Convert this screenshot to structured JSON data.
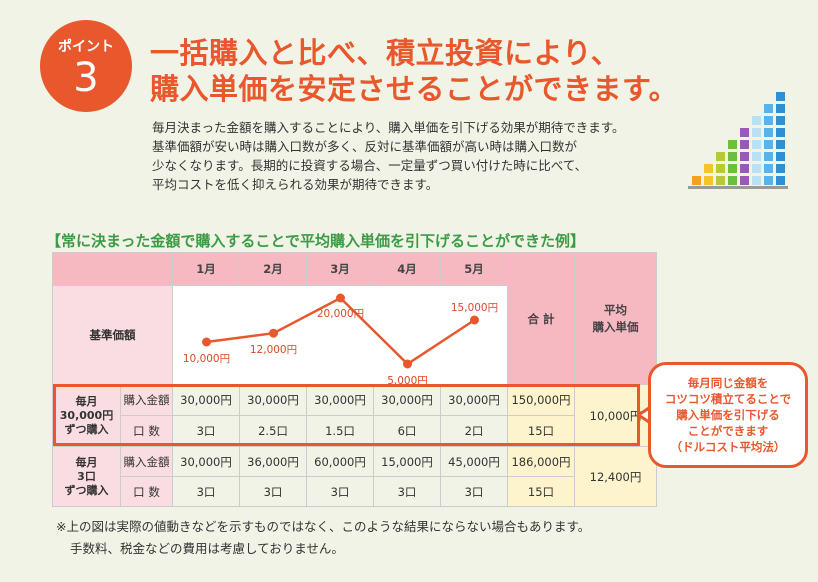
{
  "badge": {
    "label": "ポイント",
    "number": "3"
  },
  "title": {
    "line1": "一括購入と比べ、積立投資により、",
    "line2": "購入単価を安定させることができます。"
  },
  "body": [
    "毎月決まった金額を購入することにより、購入単価を引下げる効果が期待できます。",
    "基準価額が安い時は購入口数が多く、反対に基準価額が高い時は購入口数が",
    "少なくなります。長期的に投資する場合、一定量ずつ買い付けた時に比べて、",
    "平均コストを低く抑えられる効果が期待できます。"
  ],
  "subheading": "【常に決まった金額で購入することで平均購入単価を引下げることができた例】",
  "table": {
    "months": [
      "1月",
      "2月",
      "3月",
      "4月",
      "5月"
    ],
    "kijun_label": "基準価額",
    "sum_header": "合 計",
    "avg_header_1": "平均",
    "avg_header_2": "購入単価",
    "group1": {
      "label": [
        "毎月",
        "30,000円",
        "ずつ購入"
      ],
      "row_amount": {
        "label": "購入金額",
        "values": [
          "30,000円",
          "30,000円",
          "30,000円",
          "30,000円",
          "30,000円"
        ],
        "sum": "150,000円"
      },
      "row_units": {
        "label": "口 数",
        "values": [
          "3口",
          "2.5口",
          "1.5口",
          "6口",
          "2口"
        ],
        "sum": "15口"
      },
      "avg": "10,000円"
    },
    "group2": {
      "label": [
        "毎月",
        "3口",
        "ずつ購入"
      ],
      "row_amount": {
        "label": "購入金額",
        "values": [
          "30,000円",
          "36,000円",
          "60,000円",
          "15,000円",
          "45,000円"
        ],
        "sum": "186,000円"
      },
      "row_units": {
        "label": "口 数",
        "values": [
          "3口",
          "3口",
          "3口",
          "3口",
          "3口"
        ],
        "sum": "15口"
      },
      "avg": "12,400円"
    }
  },
  "chart_data": {
    "type": "line",
    "categories": [
      "1月",
      "2月",
      "3月",
      "4月",
      "5月"
    ],
    "values": [
      10000,
      12000,
      20000,
      5000,
      15000
    ],
    "point_labels": [
      "10,000円",
      "12,000円",
      "20,000円",
      "5,000円",
      "15,000円"
    ],
    "color": "#e8582c"
  },
  "callout": [
    "毎月同じ金額を",
    "コツコツ積立てることで",
    "購入単価を引下げる",
    "ことができます",
    "（ドルコスト平均法）"
  ],
  "notes": [
    "※上の図は実際の値動きなどを示すものではなく、このような結果にならない場合もあります。",
    "手数料、税金などの費用は考慮しておりません。"
  ],
  "colors": {
    "accent": "#e8582c",
    "green": "#3d9b45",
    "orange": "#f39a1b",
    "pink": "#f6b8c1"
  },
  "stair_colors": [
    "#f4a21d",
    "#f4c52a",
    "#b7c93a",
    "#6bbf3f",
    "#9b59b6",
    "#b9e0f3",
    "#5ab3e6",
    "#2f8fd0"
  ]
}
